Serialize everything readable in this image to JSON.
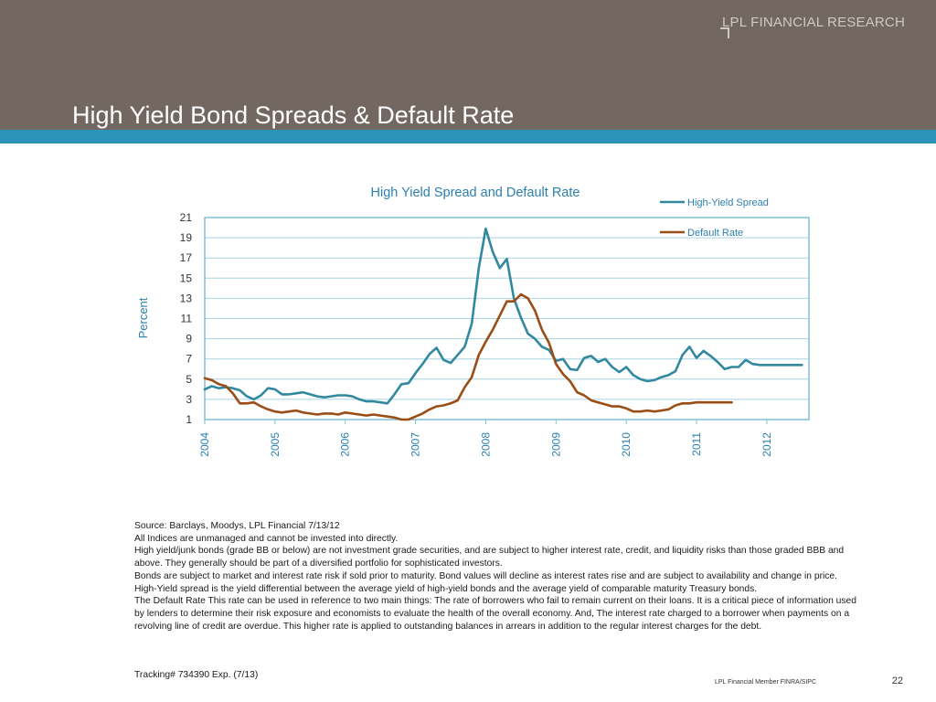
{
  "header": {
    "brand": "LPL FINANCIAL RESEARCH",
    "title": "High Yield Bond Spreads & Default Rate",
    "colors": {
      "band": "#726861",
      "stripe": "#2b93b7"
    }
  },
  "chart_data": {
    "type": "line",
    "title": "High Yield Spread and Default Rate",
    "xlabel": "",
    "ylabel": "Percent",
    "ylim": [
      1,
      21
    ],
    "yticks": [
      1,
      3,
      5,
      7,
      9,
      11,
      13,
      15,
      17,
      19,
      21
    ],
    "xlim": [
      2004.0,
      2012.6
    ],
    "xticks": [
      "2004",
      "2005",
      "2006",
      "2007",
      "2008",
      "2009",
      "2010",
      "2011",
      "2012"
    ],
    "grid": "horizontal",
    "legend": "top-right",
    "series": [
      {
        "name": "High-Yield Spread",
        "color": "#32889f",
        "x": [
          2004.0,
          2004.1,
          2004.2,
          2004.3,
          2004.4,
          2004.5,
          2004.6,
          2004.7,
          2004.8,
          2004.9,
          2005.0,
          2005.1,
          2005.2,
          2005.3,
          2005.4,
          2005.5,
          2005.6,
          2005.7,
          2005.8,
          2005.9,
          2006.0,
          2006.1,
          2006.2,
          2006.3,
          2006.4,
          2006.5,
          2006.6,
          2006.7,
          2006.8,
          2006.9,
          2007.0,
          2007.1,
          2007.2,
          2007.3,
          2007.4,
          2007.5,
          2007.6,
          2007.7,
          2007.8,
          2007.9,
          2008.0,
          2008.1,
          2008.2,
          2008.3,
          2008.4,
          2008.5,
          2008.6,
          2008.7,
          2008.8,
          2008.9,
          2009.0,
          2009.1,
          2009.2,
          2009.3,
          2009.4,
          2009.5,
          2009.6,
          2009.7,
          2009.8,
          2009.9,
          2010.0,
          2010.1,
          2010.2,
          2010.3,
          2010.4,
          2010.5,
          2010.6,
          2010.7,
          2010.8,
          2010.9,
          2011.0,
          2011.1,
          2011.2,
          2011.3,
          2011.4,
          2011.5,
          2011.6,
          2011.7,
          2011.8,
          2011.9,
          2012.0,
          2012.1,
          2012.2,
          2012.3,
          2012.4,
          2012.5
        ],
        "values": [
          4.0,
          4.3,
          4.1,
          4.2,
          4.1,
          3.9,
          3.3,
          3.0,
          3.4,
          4.1,
          4.0,
          3.5,
          3.5,
          3.6,
          3.7,
          3.5,
          3.3,
          3.2,
          3.3,
          3.4,
          3.4,
          3.3,
          3.0,
          2.8,
          2.8,
          2.7,
          2.6,
          3.5,
          4.5,
          4.6,
          5.6,
          6.5,
          7.5,
          8.1,
          6.9,
          6.6,
          7.4,
          8.2,
          10.5,
          16.0,
          19.9,
          17.6,
          16.0,
          16.9,
          13.0,
          11.1,
          9.5,
          9.0,
          8.2,
          7.9,
          6.8,
          7.0,
          6.0,
          5.9,
          7.1,
          7.3,
          6.7,
          7.0,
          6.2,
          5.7,
          6.2,
          5.4,
          5.0,
          4.8,
          4.9,
          5.2,
          5.4,
          5.8,
          7.4,
          8.2,
          7.1,
          7.8,
          7.3,
          6.7,
          6.0,
          6.2,
          6.2,
          6.9,
          6.5,
          6.4,
          6.4,
          6.4,
          6.4,
          6.4,
          6.4,
          6.4
        ]
      },
      {
        "name": "Default Rate",
        "color": "#9a4e16",
        "x": [
          2004.0,
          2004.1,
          2004.2,
          2004.3,
          2004.4,
          2004.5,
          2004.6,
          2004.7,
          2004.8,
          2004.9,
          2005.0,
          2005.1,
          2005.2,
          2005.3,
          2005.4,
          2005.5,
          2005.6,
          2005.7,
          2005.8,
          2005.9,
          2006.0,
          2006.1,
          2006.2,
          2006.3,
          2006.4,
          2006.5,
          2006.6,
          2006.7,
          2006.8,
          2006.9,
          2007.0,
          2007.1,
          2007.2,
          2007.3,
          2007.4,
          2007.5,
          2007.6,
          2007.7,
          2007.8,
          2007.9,
          2008.0,
          2008.1,
          2008.2,
          2008.3,
          2008.4,
          2008.5,
          2008.6,
          2008.7,
          2008.8,
          2008.9,
          2009.0,
          2009.1,
          2009.2,
          2009.3,
          2009.4,
          2009.5,
          2009.6,
          2009.7,
          2009.8,
          2009.9,
          2010.0,
          2010.1,
          2010.2,
          2010.3,
          2010.4,
          2010.5,
          2010.6,
          2010.7,
          2010.8,
          2010.9,
          2011.0,
          2011.1,
          2011.2,
          2011.3,
          2011.4,
          2011.5
        ],
        "values": [
          5.1,
          4.9,
          4.5,
          4.3,
          3.6,
          2.6,
          2.6,
          2.7,
          2.3,
          2.0,
          1.8,
          1.7,
          1.8,
          1.9,
          1.7,
          1.6,
          1.5,
          1.6,
          1.6,
          1.5,
          1.7,
          1.6,
          1.5,
          1.4,
          1.5,
          1.4,
          1.3,
          1.2,
          1.0,
          1.0,
          1.3,
          1.6,
          2.0,
          2.3,
          2.4,
          2.6,
          2.9,
          4.2,
          5.2,
          7.4,
          8.7,
          9.9,
          11.3,
          12.7,
          12.7,
          13.4,
          13.0,
          11.8,
          9.9,
          8.6,
          6.5,
          5.5,
          4.8,
          3.7,
          3.4,
          2.9,
          2.7,
          2.5,
          2.3,
          2.3,
          2.1,
          1.8,
          1.8,
          1.9,
          1.8,
          1.9,
          2.0,
          2.4,
          2.6,
          2.6,
          2.7,
          2.7,
          2.7,
          2.7,
          2.7,
          2.7
        ]
      }
    ]
  },
  "notes": [
    "Source: Barclays, Moodys, LPL Financial 7/13/12",
    "All Indices are unmanaged and cannot be invested into directly.",
    "High yield/junk bonds (grade BB or below) are not investment grade securities, and are subject to higher interest rate, credit, and liquidity risks than those graded BBB and above. They generally should be part of a diversified portfolio for sophisticated investors.",
    "Bonds are subject to market and interest rate risk if sold prior to maturity. Bond values will decline as interest rates rise and are subject to availability and change in price.",
    "High-Yield spread is the yield differential between the average yield of high-yield bonds and the average yield of comparable maturity Treasury bonds.",
    "The Default Rate This rate can be used in reference to two main things: The rate of borrowers who fail to remain current on their loans. It is a critical piece of information used by lenders to determine their risk exposure and economists to evaluate the health of the overall economy. And, The interest rate charged to a borrower when payments on a revolving line of credit are overdue. This higher rate is applied to outstanding balances in arrears in addition to the regular interest charges for the debt."
  ],
  "footer": {
    "tracking": "Tracking# 734390 Exp. (7/13)",
    "member": "LPL Financial Member FINRA/SIPC",
    "page_number": "22"
  }
}
